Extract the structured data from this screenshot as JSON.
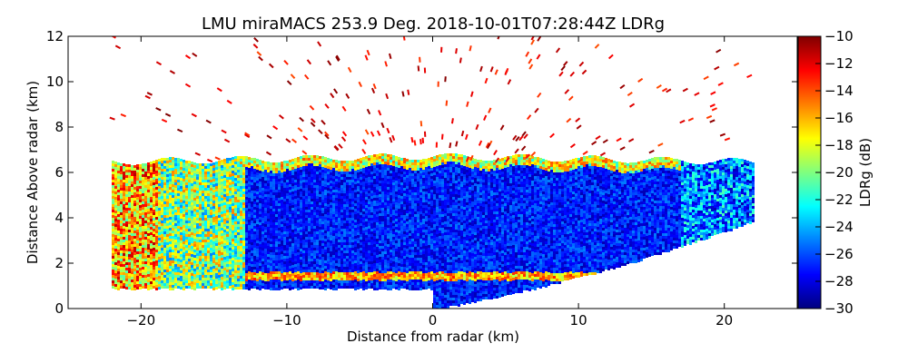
{
  "chart_data": {
    "type": "heatmap",
    "title": "LMU miraMACS 253.9 Deg. 2018-10-01T07:28:44Z  LDRg",
    "xlabel": "Distance from radar (km)",
    "ylabel": "Distance Above radar  (km)",
    "xlim": [
      -25,
      25
    ],
    "ylim": [
      0,
      12
    ],
    "x_ticks": [
      -20,
      -10,
      0,
      10,
      20
    ],
    "y_ticks": [
      0,
      2,
      4,
      6,
      8,
      10,
      12
    ],
    "colorbar": {
      "label": "LDRg (dB)",
      "range": [
        -30,
        -10
      ],
      "ticks": [
        -10,
        -12,
        -14,
        -16,
        -18,
        -20,
        -22,
        -24,
        -26,
        -28,
        -30
      ],
      "colormap": "jet",
      "colors": [
        "#00007f",
        "#0000ff",
        "#007fff",
        "#00ffff",
        "#7fff7f",
        "#ffff00",
        "#ff7f00",
        "#ff0000",
        "#7f0000"
      ]
    },
    "scan": {
      "elevation_deg": 253.9,
      "time": "2018-10-01T07:28:44Z",
      "variable": "LDRg"
    },
    "features": {
      "cloud_base_km": 0.8,
      "cloud_top_km": 6.7,
      "melting_layer_km": 1.5,
      "melting_layer_ldr_db": -16,
      "cloud_interior_ldr_db": -27,
      "cloud_top_edge_ldr_db": -18,
      "left_edge_ldr_db": -20,
      "noise_above_top_ldr_db": -10,
      "left_extent_km": -22,
      "right_extent_km": 22,
      "scan_floor_left": [
        -22,
        1.0
      ],
      "scan_floor_right": [
        22,
        3.9
      ]
    }
  }
}
